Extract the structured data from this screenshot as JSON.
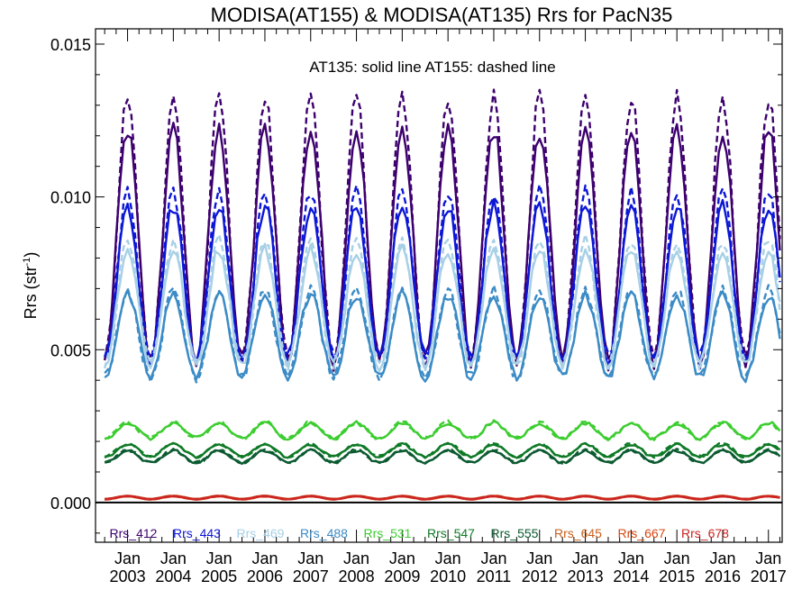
{
  "chart_data": {
    "type": "line",
    "title": "MODISA(AT155) & MODISA(AT135)  Rrs for PacN35",
    "ylabel": "Rrs (str",
    "ylabel_sup": "-1",
    "ylabel_close": ")",
    "annotation": "AT135: solid line   AT155: dashed line",
    "xlim": [
      2002.3,
      2017.3
    ],
    "ylim": [
      -0.0013,
      0.0155
    ],
    "y_ticks": [
      {
        "value": 0.0,
        "label": "0.000"
      },
      {
        "value": 0.005,
        "label": "0.005"
      },
      {
        "value": 0.01,
        "label": "0.010"
      },
      {
        "value": 0.015,
        "label": "0.015"
      }
    ],
    "x_ticks": [
      {
        "value": 2003,
        "month": "Jan",
        "year": "2003"
      },
      {
        "value": 2004,
        "month": "Jan",
        "year": "2004"
      },
      {
        "value": 2005,
        "month": "Jan",
        "year": "2005"
      },
      {
        "value": 2006,
        "month": "Jan",
        "year": "2006"
      },
      {
        "value": 2007,
        "month": "Jan",
        "year": "2007"
      },
      {
        "value": 2008,
        "month": "Jan",
        "year": "2008"
      },
      {
        "value": 2009,
        "month": "Jan",
        "year": "2009"
      },
      {
        "value": 2010,
        "month": "Jan",
        "year": "2010"
      },
      {
        "value": 2011,
        "month": "Jan",
        "year": "2011"
      },
      {
        "value": 2012,
        "month": "Jan",
        "year": "2012"
      },
      {
        "value": 2013,
        "month": "Jan",
        "year": "2013"
      },
      {
        "value": 2014,
        "month": "Jan",
        "year": "2014"
      },
      {
        "value": 2015,
        "month": "Jan",
        "year": "2015"
      },
      {
        "value": 2016,
        "month": "Jan",
        "year": "2016"
      },
      {
        "value": 2017,
        "month": "Jan",
        "year": "2017"
      }
    ],
    "zero_line": 0.0,
    "legend_placement": "bottom, inside plot",
    "series_model": "seasonal: approximate peak value each January (in Rrs units), approximate trough value each July, with AT155 (dashed) peaks scaled by dashed_peak_factor",
    "series": [
      {
        "name": "Rrs_412",
        "color": "#3d006e",
        "jan_peak": 0.0122,
        "jul_trough": 0.0046,
        "dashed_peak_factor": 1.07
      },
      {
        "name": "Rrs_443",
        "color": "#0c17d6",
        "jan_peak": 0.0097,
        "jul_trough": 0.0047,
        "dashed_peak_factor": 1.04
      },
      {
        "name": "Rrs_469",
        "color": "#a7d0e6",
        "jan_peak": 0.0083,
        "jul_trough": 0.0045,
        "dashed_peak_factor": 1.03
      },
      {
        "name": "Rrs_488",
        "color": "#3b8bc6",
        "jan_peak": 0.0068,
        "jul_trough": 0.0041,
        "dashed_peak_factor": 1.02
      },
      {
        "name": "Rrs_531",
        "color": "#3ccd30",
        "jan_peak": 0.0026,
        "jul_trough": 0.0021,
        "dashed_peak_factor": 1.01
      },
      {
        "name": "Rrs_547",
        "color": "#0f7a26",
        "jan_peak": 0.0019,
        "jul_trough": 0.0015,
        "dashed_peak_factor": 1.01
      },
      {
        "name": "Rrs_555",
        "color": "#0b5a30",
        "jan_peak": 0.0017,
        "jul_trough": 0.0013,
        "dashed_peak_factor": 1.01
      },
      {
        "name": "Rrs_645",
        "color": "#c8601e",
        "jan_peak": 0.00022,
        "jul_trough": 0.00012,
        "dashed_peak_factor": 1.0
      },
      {
        "name": "Rrs_667",
        "color": "#d9480f",
        "jan_peak": 0.0002,
        "jul_trough": 0.0001,
        "dashed_peak_factor": 1.0
      },
      {
        "name": "Rrs_678",
        "color": "#cc2424",
        "jan_peak": 0.00021,
        "jul_trough": 0.00011,
        "dashed_peak_factor": 1.0
      }
    ]
  }
}
